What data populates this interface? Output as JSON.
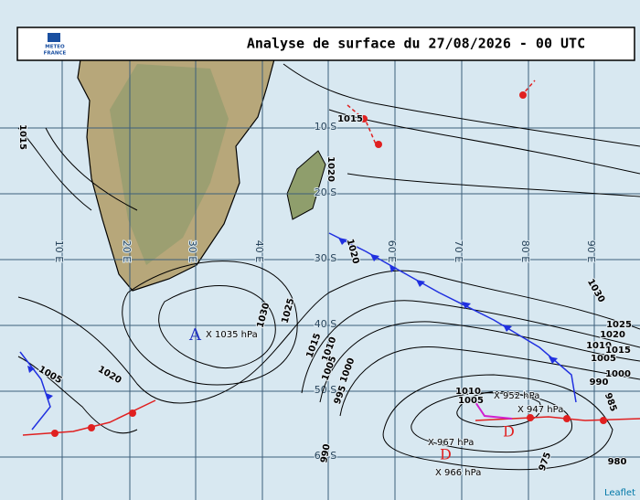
{
  "header": {
    "logo": [
      "METEO",
      "FRANCE"
    ],
    "title": "Analyse de surface du 27/08/2026 - 00 UTC"
  },
  "graticule": {
    "latitudes": [
      "10 S",
      "20 S",
      "30 S",
      "40 S",
      "50 S",
      "60 S"
    ],
    "longitudes": [
      "10 E",
      "20 E",
      "30 E",
      "40 E",
      "60 E",
      "70 E",
      "80 E",
      "90 E"
    ]
  },
  "isobar_labels": [
    1015,
    1015,
    1020,
    1020,
    1025,
    1030,
    1020,
    1005,
    1015,
    1010,
    1005,
    1000,
    995,
    990,
    1010,
    1005,
    975,
    980,
    985,
    990,
    1000,
    1005,
    1010,
    1015,
    1020,
    1025,
    1030
  ],
  "centers": [
    {
      "symbol": "A",
      "label": "X 1035 hPa"
    },
    {
      "symbol": "D",
      "label": "X 947 hPa"
    },
    {
      "symbol": "D",
      "label": "X 967 hPa"
    }
  ],
  "other_centers": [
    "X 952 hPa",
    "X 966 hPa"
  ],
  "attribution": "Leaflet"
}
